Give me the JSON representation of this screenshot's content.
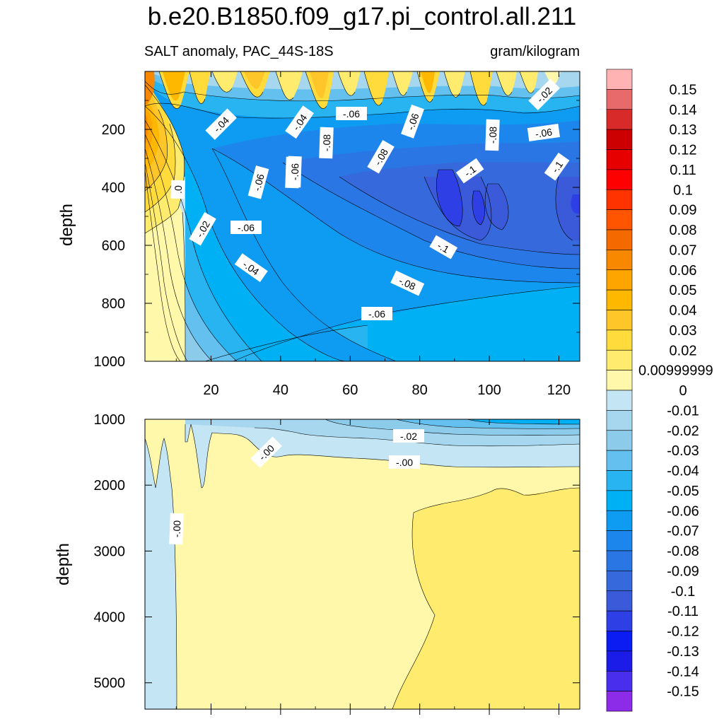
{
  "title": "b.e20.B1850.f09_g17.pi_control.all.211",
  "subtitle_left": "SALT anomaly, PAC_44S-18S",
  "subtitle_right": "gram/kilogram",
  "chart_data": [
    {
      "type": "heatmap",
      "panel": "upper",
      "ylabel": "depth",
      "xlabel": "",
      "x_ticks": [
        "20",
        "40",
        "60",
        "80",
        "100",
        "120"
      ],
      "y_ticks": [
        "200",
        "400",
        "600",
        "800",
        "1000"
      ],
      "xlim": [
        1,
        126
      ],
      "ylim": [
        1000,
        0
      ],
      "contour_labels": [
        "-.04",
        "-.04",
        "-.06",
        "-.08",
        "-.06",
        "-.08",
        "-.02",
        "-.06",
        "-.06",
        "-.08",
        ".0",
        "-.06",
        "-.08",
        "-.1",
        "-.1",
        "-.02",
        "-.06",
        "-.1",
        "-.04",
        "-.08",
        "-.06"
      ]
    },
    {
      "type": "heatmap",
      "panel": "lower",
      "ylabel": "depth",
      "xlabel": "",
      "y_ticks": [
        "1000",
        "2000",
        "3000",
        "4000",
        "5000"
      ],
      "xlim": [
        1,
        126
      ],
      "ylim": [
        1000,
        5400
      ],
      "contour_labels": [
        "-.02",
        "-.00",
        "-.00",
        "-.00"
      ]
    }
  ],
  "colorbar": {
    "labels": [
      "0.15",
      "0.14",
      "0.13",
      "0.12",
      "0.11",
      "0.1",
      "0.09",
      "0.08",
      "0.07",
      "0.06",
      "0.05",
      "0.04",
      "0.03",
      "0.02",
      "0.00999999",
      "0",
      "-0.01",
      "-0.02",
      "-0.03",
      "-0.04",
      "-0.05",
      "-0.06",
      "-0.07",
      "-0.08",
      "-0.09",
      "-0.1",
      "-0.11",
      "-0.12",
      "-0.13",
      "-0.14",
      "-0.15"
    ],
    "colors": [
      "#FFB3B3",
      "#E86A6A",
      "#D92A2A",
      "#CC0000",
      "#E60000",
      "#FF0000",
      "#FF3300",
      "#FF5500",
      "#F56A00",
      "#F88800",
      "#FFA500",
      "#FFB800",
      "#FFC62A",
      "#FFDC3C",
      "#FFEB6E",
      "#FFF8AA",
      "#C3E5F4",
      "#A6D7EE",
      "#8CCBEA",
      "#64C0EE",
      "#28B4F0",
      "#00B0F5",
      "#0E9CF2",
      "#1D86EC",
      "#2A76E4",
      "#366ADC",
      "#3A5ADA",
      "#2F3FE6",
      "#0A1CF2",
      "#1C1CE8",
      "#4A2EEE",
      "#8C2CE8"
    ]
  }
}
